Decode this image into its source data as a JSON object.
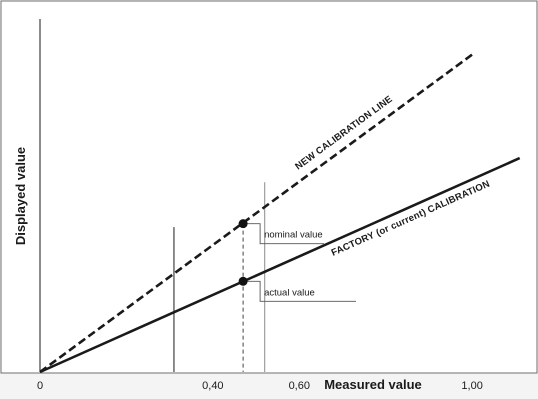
{
  "chart_data": {
    "type": "line",
    "title": "",
    "xlabel": "Measured value",
    "ylabel": "Displayed value",
    "xlim": [
      0,
      1.12
    ],
    "ylim": [
      0,
      1.0
    ],
    "x_ticks": [
      {
        "value": 0,
        "label": "0"
      },
      {
        "value": 0.4,
        "label": "0,40"
      },
      {
        "value": 0.6,
        "label": "0,60"
      },
      {
        "value": 1.0,
        "label": "1,00"
      }
    ],
    "grid": false,
    "legend": "none",
    "series": [
      {
        "name": "NEW CALIBRATION LINE",
        "style": "dashed",
        "color": "#1a1a1a",
        "x": [
          0,
          1.0
        ],
        "y": [
          0,
          0.92
        ]
      },
      {
        "name": "FACTORY (or current) CALIBRATION",
        "style": "solid",
        "color": "#1a1a1a",
        "x": [
          0,
          1.11
        ],
        "y": [
          0,
          0.62
        ]
      }
    ],
    "reference_lines": [
      {
        "x": 0.31,
        "y_top": 0.42,
        "style": "solid"
      },
      {
        "x": 0.47,
        "y_top": 0.43,
        "style": "dashed"
      },
      {
        "x": 0.52,
        "y_top": 0.55,
        "style": "solid"
      }
    ],
    "points": [
      {
        "name": "nominal value",
        "x": 0.47,
        "y": 0.43,
        "label": "nominal value"
      },
      {
        "name": "actual value",
        "x": 0.47,
        "y": 0.263,
        "label": "actual value"
      }
    ]
  }
}
